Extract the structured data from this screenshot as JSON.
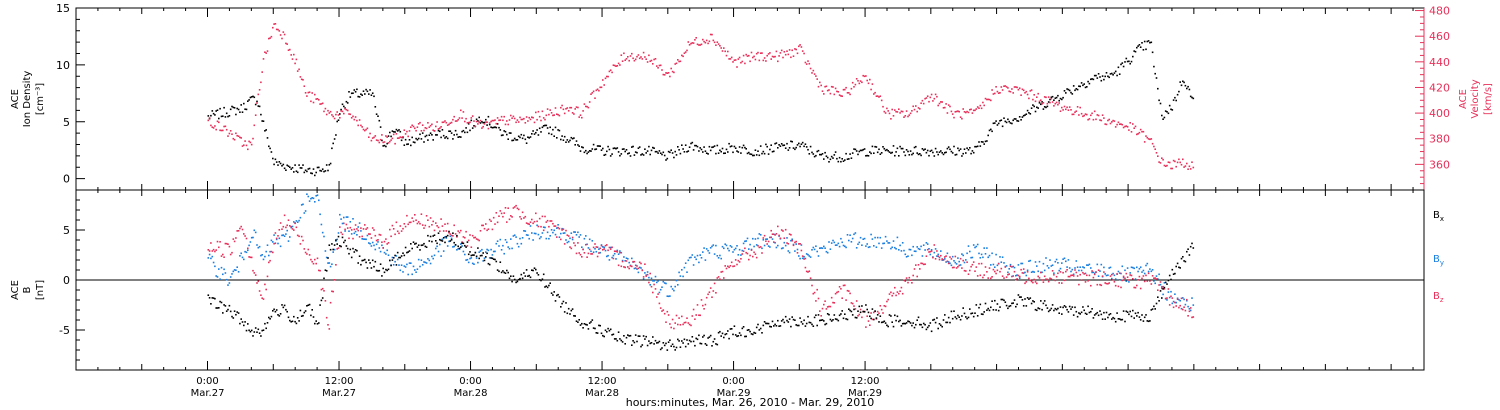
{
  "chart_data": [
    {
      "type": "scatter",
      "panel": "top",
      "ylabel_left": [
        "ACE",
        "Ion Density",
        "[cm⁻³]"
      ],
      "ylabel_right": [
        "ACE",
        "Velocity",
        "[km/s]"
      ],
      "ylim_left": [
        -1,
        15
      ],
      "ylim_right": [
        340,
        482
      ],
      "yticks_left": [
        "0",
        "5",
        "10",
        "15"
      ],
      "yticks_right": [
        "360",
        "380",
        "400",
        "420",
        "440",
        "460",
        "480"
      ],
      "colors": {
        "density": "#000000",
        "velocity": "#e8305a"
      },
      "series": [
        {
          "key": "density",
          "axis": "left",
          "color": "#000000",
          "x": [
            0,
            2,
            3,
            4,
            4.5,
            5,
            6,
            7,
            8,
            9,
            10,
            11,
            12,
            13,
            15,
            16,
            17,
            18,
            19,
            21,
            23,
            25,
            27,
            29,
            31,
            33,
            34,
            36,
            38,
            40,
            42,
            44,
            46,
            48,
            50,
            52,
            54,
            56,
            58,
            60,
            62,
            64,
            66,
            68,
            70,
            72,
            74,
            76,
            78,
            80,
            81,
            82,
            83,
            84,
            85,
            86,
            87,
            88,
            89,
            90
          ],
          "y": [
            5.5,
            6,
            6.2,
            7,
            7,
            5,
            1.5,
            1.2,
            1,
            0.8,
            0.8,
            1,
            6,
            7.5,
            7.5,
            3,
            4.5,
            3.2,
            3.5,
            4,
            4,
            5.5,
            4,
            3.5,
            4.5,
            3.5,
            2.8,
            2.5,
            2.5,
            2.5,
            2,
            3,
            2.5,
            2.8,
            2.5,
            2.8,
            3,
            2,
            2,
            2.5,
            2.5,
            2.5,
            2.5,
            2.5,
            2.5,
            5,
            5.5,
            6.5,
            7.5,
            8.5,
            9,
            9,
            9.5,
            10.5,
            11.5,
            12,
            5.5,
            6.5,
            9,
            6.5
          ]
        },
        {
          "key": "velocity",
          "axis": "right",
          "color": "#e8305a",
          "x": [
            0,
            2,
            3,
            4,
            4.5,
            5,
            6,
            7,
            8,
            9,
            10,
            11,
            12,
            13,
            15,
            16,
            17,
            18,
            19,
            21,
            23,
            25,
            27,
            29,
            31,
            33,
            34,
            36,
            38,
            40,
            42,
            44,
            46,
            48,
            50,
            52,
            54,
            56,
            58,
            60,
            62,
            64,
            66,
            68,
            70,
            72,
            74,
            76,
            78,
            80,
            81,
            82,
            83,
            84,
            85,
            86,
            87,
            88,
            89,
            90
          ],
          "y": [
            395,
            385,
            378,
            375,
            410,
            440,
            470,
            460,
            440,
            415,
            410,
            400,
            400,
            400,
            380,
            380,
            380,
            385,
            390,
            390,
            400,
            390,
            395,
            395,
            400,
            405,
            400,
            425,
            445,
            445,
            430,
            455,
            460,
            440,
            445,
            445,
            450,
            420,
            415,
            430,
            400,
            400,
            415,
            400,
            400,
            420,
            418,
            412,
            405,
            400,
            398,
            395,
            392,
            390,
            385,
            378,
            362,
            360,
            362,
            358
          ]
        }
      ]
    },
    {
      "type": "scatter",
      "panel": "bottom",
      "ylabel": [
        "ACE",
        "B",
        "[nT]"
      ],
      "ylim": [
        -9,
        9
      ],
      "yticks": [
        "-5",
        "0",
        "5"
      ],
      "legend": [
        {
          "name": "Bx",
          "base": "B",
          "sub": "x",
          "color": "#000000"
        },
        {
          "name": "By",
          "base": "B",
          "sub": "y",
          "color": "#1a7fe0"
        },
        {
          "name": "Bz",
          "base": "B",
          "sub": "z",
          "color": "#e8305a"
        }
      ],
      "series": [
        {
          "name": "Bx",
          "color": "#000000",
          "x": [
            0,
            2,
            3,
            4,
            5,
            6,
            7,
            8,
            9,
            10,
            11,
            12,
            14,
            16,
            18,
            20,
            22,
            24,
            26,
            28,
            30,
            32,
            34,
            36,
            38,
            40,
            42,
            44,
            46,
            48,
            50,
            52,
            54,
            56,
            58,
            60,
            62,
            64,
            66,
            68,
            70,
            72,
            74,
            76,
            78,
            80,
            82,
            84,
            86,
            88,
            90
          ],
          "y": [
            -2,
            -3,
            -4,
            -5,
            -5,
            -3,
            -3,
            -4,
            -2.5,
            -4.5,
            3,
            4,
            2,
            1,
            3,
            4,
            4.5,
            3,
            2,
            0,
            1,
            -2,
            -4,
            -5,
            -6,
            -6,
            -6.5,
            -6,
            -6,
            -5,
            -5,
            -4,
            -4,
            -4,
            -3.5,
            -3,
            -4,
            -4,
            -4.5,
            -3.5,
            -3,
            -2.5,
            -2,
            -2.5,
            -3,
            -3,
            -3.5,
            -3.5,
            -3.5,
            1,
            3.5
          ]
        },
        {
          "name": "By",
          "color": "#1a7fe0",
          "x": [
            0,
            2,
            3,
            4,
            5,
            6,
            7,
            8,
            9,
            10,
            11,
            12,
            14,
            16,
            18,
            20,
            22,
            24,
            26,
            28,
            30,
            32,
            34,
            36,
            38,
            40,
            42,
            44,
            46,
            48,
            50,
            52,
            54,
            56,
            58,
            60,
            62,
            64,
            66,
            68,
            70,
            72,
            74,
            76,
            78,
            80,
            82,
            84,
            86,
            88,
            90
          ],
          "y": [
            2,
            0,
            2,
            5,
            2,
            4,
            4,
            6,
            8,
            8,
            1,
            6,
            5,
            3,
            1,
            2,
            4,
            2,
            3,
            4,
            5,
            5,
            4,
            3,
            2,
            0.5,
            -1,
            2,
            3,
            3,
            4,
            4,
            3,
            3,
            4,
            4,
            4,
            3,
            3,
            2,
            3,
            2,
            1,
            1.5,
            1.5,
            1,
            1,
            0.5,
            1,
            -2,
            -2.5
          ]
        },
        {
          "name": "Bz",
          "color": "#e8305a",
          "x": [
            0,
            2,
            3,
            4,
            5,
            6,
            7,
            8,
            9,
            10,
            11,
            12,
            14,
            16,
            18,
            20,
            22,
            24,
            26,
            28,
            30,
            32,
            34,
            36,
            38,
            40,
            42,
            44,
            46,
            48,
            50,
            52,
            54,
            56,
            58,
            60,
            62,
            64,
            66,
            68,
            70,
            72,
            74,
            76,
            78,
            80,
            82,
            84,
            86,
            88,
            90
          ],
          "y": [
            3.5,
            3,
            6,
            2,
            -2,
            4,
            6,
            5,
            3,
            2,
            -4.5,
            5,
            5,
            4,
            6,
            6,
            5,
            4,
            6,
            7,
            6,
            5,
            3,
            3,
            2,
            1,
            -4,
            -4,
            -1,
            2,
            3,
            5,
            3,
            -3,
            -1,
            -4,
            -2,
            0,
            3,
            2,
            1,
            1,
            0.5,
            0.5,
            0.5,
            0.3,
            0.3,
            0,
            0,
            -2,
            -3
          ]
        }
      ]
    }
  ],
  "xaxis": {
    "range_hours": [
      -12,
      111
    ],
    "title": "hours:minutes, Mar. 26, 2010 - Mar. 29, 2010",
    "ticks": [
      {
        "hour": 0,
        "time": "0:00",
        "date": "Mar.27"
      },
      {
        "hour": 12,
        "time": "12:00",
        "date": "Mar.27"
      },
      {
        "hour": 24,
        "time": "0:00",
        "date": "Mar.28"
      },
      {
        "hour": 36,
        "time": "12:00",
        "date": "Mar.28"
      },
      {
        "hour": 48,
        "time": "0:00",
        "date": "Mar.29"
      },
      {
        "hour": 60,
        "time": "12:00",
        "date": "Mar.29"
      }
    ]
  }
}
